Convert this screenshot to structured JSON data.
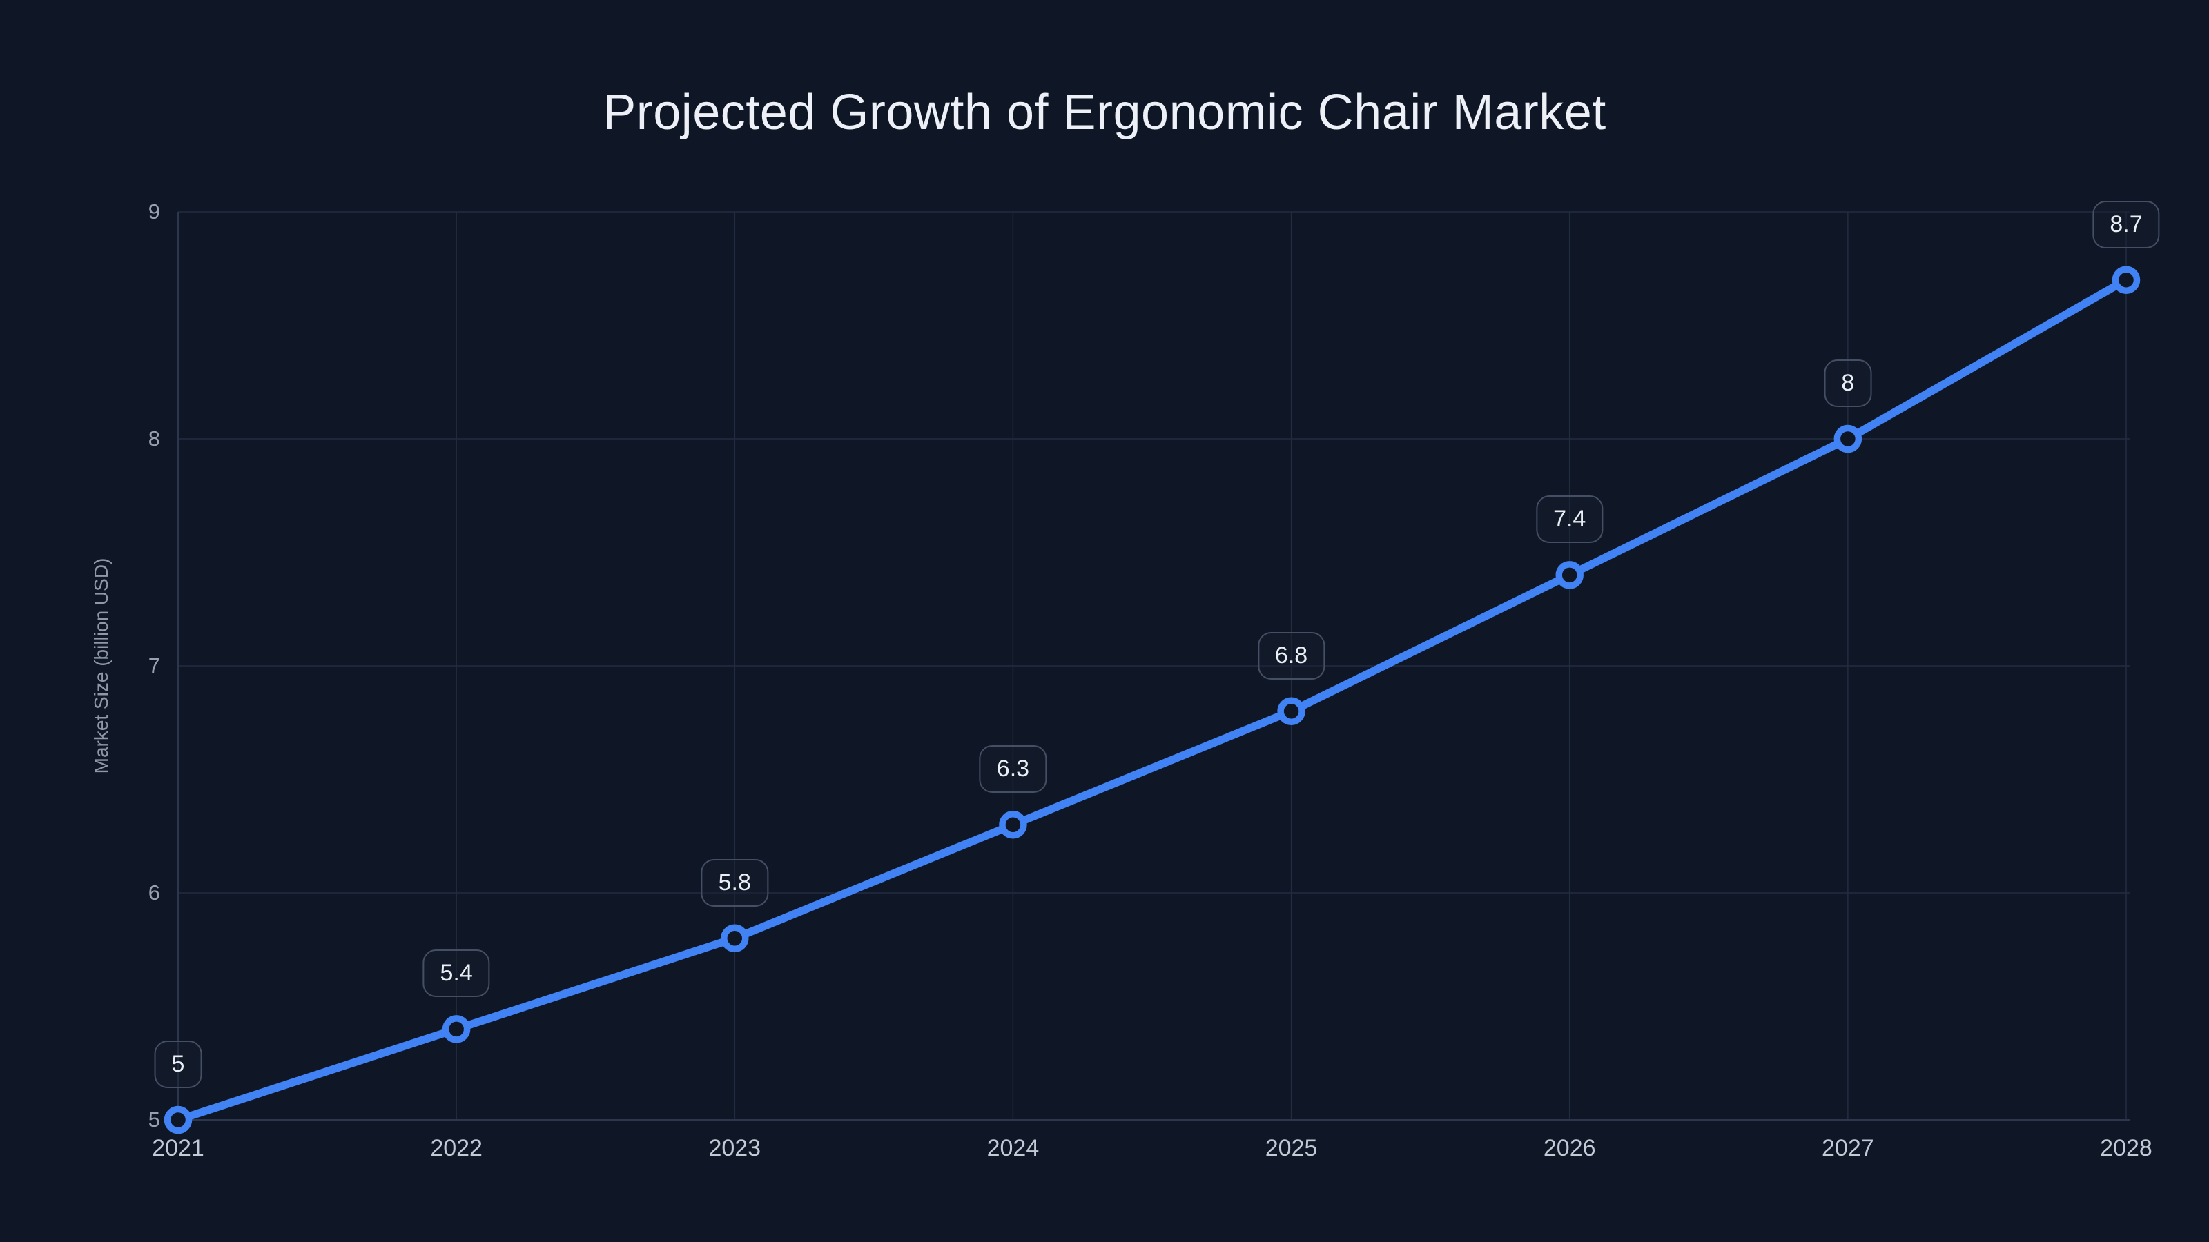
{
  "header": {
    "title": "Projected Growth of Ergonomic Chair Market"
  },
  "chart_data": {
    "type": "line",
    "title": "Projected Growth of Ergonomic Chair Market",
    "categories": [
      "2021",
      "2022",
      "2023",
      "2024",
      "2025",
      "2026",
      "2027",
      "2028"
    ],
    "values": [
      5,
      5.4,
      5.8,
      6.3,
      6.8,
      7.4,
      8,
      8.7
    ],
    "point_labels": [
      "5",
      "5.4",
      "5.8",
      "6.3",
      "6.8",
      "7.4",
      "8",
      "8.7"
    ],
    "xlabel": "",
    "ylabel": "Market Size (billion USD)",
    "ylim": [
      5,
      9
    ],
    "yticks": [
      5,
      6,
      7,
      8,
      9
    ],
    "grid": true,
    "legend": false,
    "marker_style": "open-circle"
  },
  "colors": {
    "background": "#0f1726",
    "line": "#4183f4",
    "marker_ring": "#4183f4",
    "marker_fill": "#0f1726",
    "gridline": "#222c40",
    "axis_line": "#2c374e",
    "title_text": "#edf1f7",
    "x_tick_text": "#c2cad6",
    "y_tick_text": "#97a1b2",
    "y_axis_title_text": "#8e98a9",
    "label_box_border": "#454f64",
    "label_box_text": "#eaeef5"
  }
}
